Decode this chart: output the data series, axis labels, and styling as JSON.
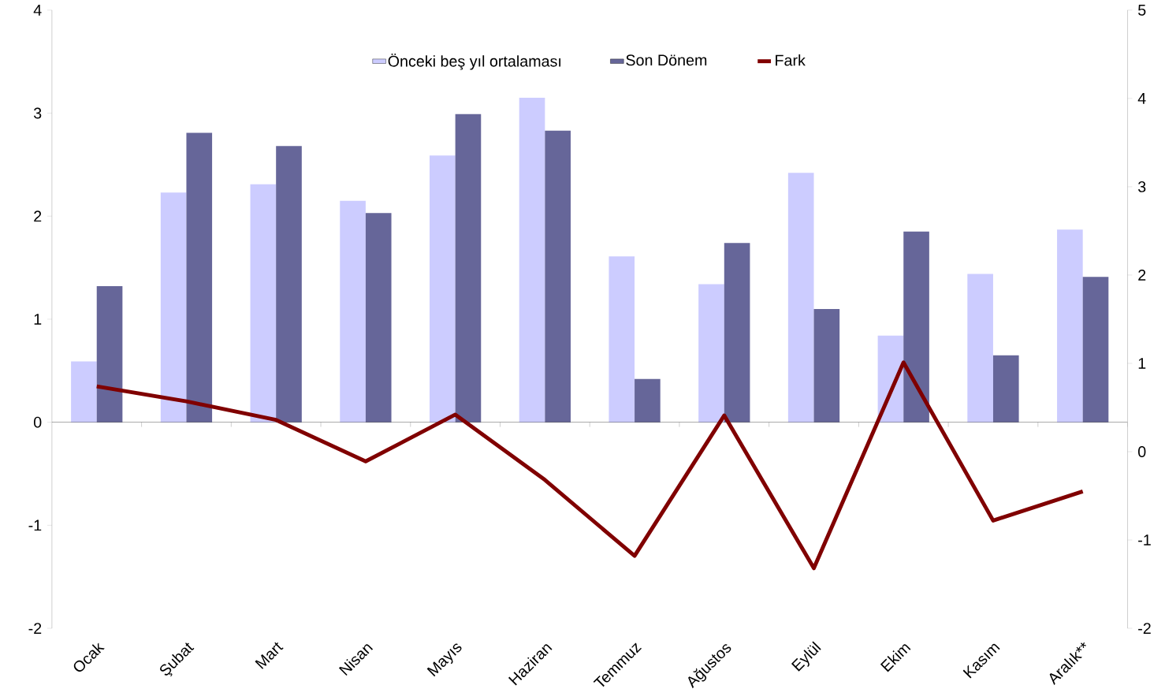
{
  "chart_data": {
    "type": "bar",
    "categories": [
      "Ocak",
      "Şubat",
      "Mart",
      "Nisan",
      "Mayıs",
      "Haziran",
      "Temmuz",
      "Ağustos",
      "Eylül",
      "Ekim",
      "Kasım",
      "Aralık**"
    ],
    "series": [
      {
        "name": "Önceki beş yıl ortalaması",
        "color": "#ccccff",
        "values": [
          0.59,
          2.23,
          2.31,
          2.15,
          2.59,
          3.15,
          1.61,
          1.34,
          2.42,
          0.84,
          1.44,
          1.87
        ]
      },
      {
        "name": "Son Dönem",
        "color": "#666699",
        "values": [
          1.32,
          2.81,
          2.68,
          2.03,
          2.99,
          2.83,
          0.42,
          1.74,
          1.1,
          1.85,
          0.65,
          1.41
        ]
      },
      {
        "name": "Fark",
        "type": "line",
        "axis": "y2",
        "color": "#800000",
        "values": [
          0.74,
          0.57,
          0.36,
          -0.11,
          0.42,
          -0.32,
          -1.18,
          0.41,
          -1.32,
          1.01,
          -0.78,
          -0.45
        ]
      }
    ],
    "ylim": [
      -2,
      4
    ],
    "yticks": [
      -2,
      -1,
      0,
      1,
      2,
      3,
      4
    ],
    "y2lim": [
      -2,
      5
    ],
    "y2ticks": [
      -2,
      -1,
      0,
      1,
      2,
      3,
      4,
      5
    ],
    "legend": "top"
  }
}
